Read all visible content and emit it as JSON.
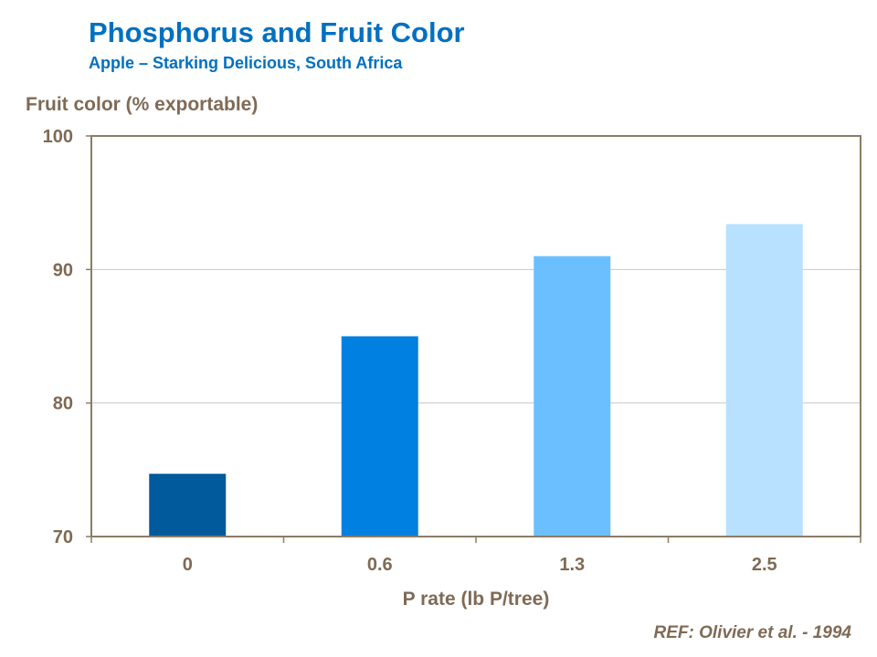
{
  "chart_data": {
    "type": "bar",
    "title": "Phosphorus and Fruit Color",
    "subtitle": "Apple – Starking Delicious, South Africa",
    "ylabel": "Fruit color (% exportable)",
    "xlabel": "P rate (lb P/tree)",
    "categories": [
      "0",
      "0.6",
      "1.3",
      "2.5"
    ],
    "values": [
      74.7,
      85.0,
      91.0,
      93.4
    ],
    "bar_colors": [
      "#005a9c",
      "#0080e0",
      "#6bbfff",
      "#b8e0ff"
    ],
    "ylim": [
      70,
      100
    ],
    "yticks": [
      70,
      80,
      90,
      100
    ],
    "grid": true,
    "axis_color": "#8c7b66",
    "grid_color": "#c8c8c8"
  },
  "reference": "REF: Olivier et al. - 1994"
}
